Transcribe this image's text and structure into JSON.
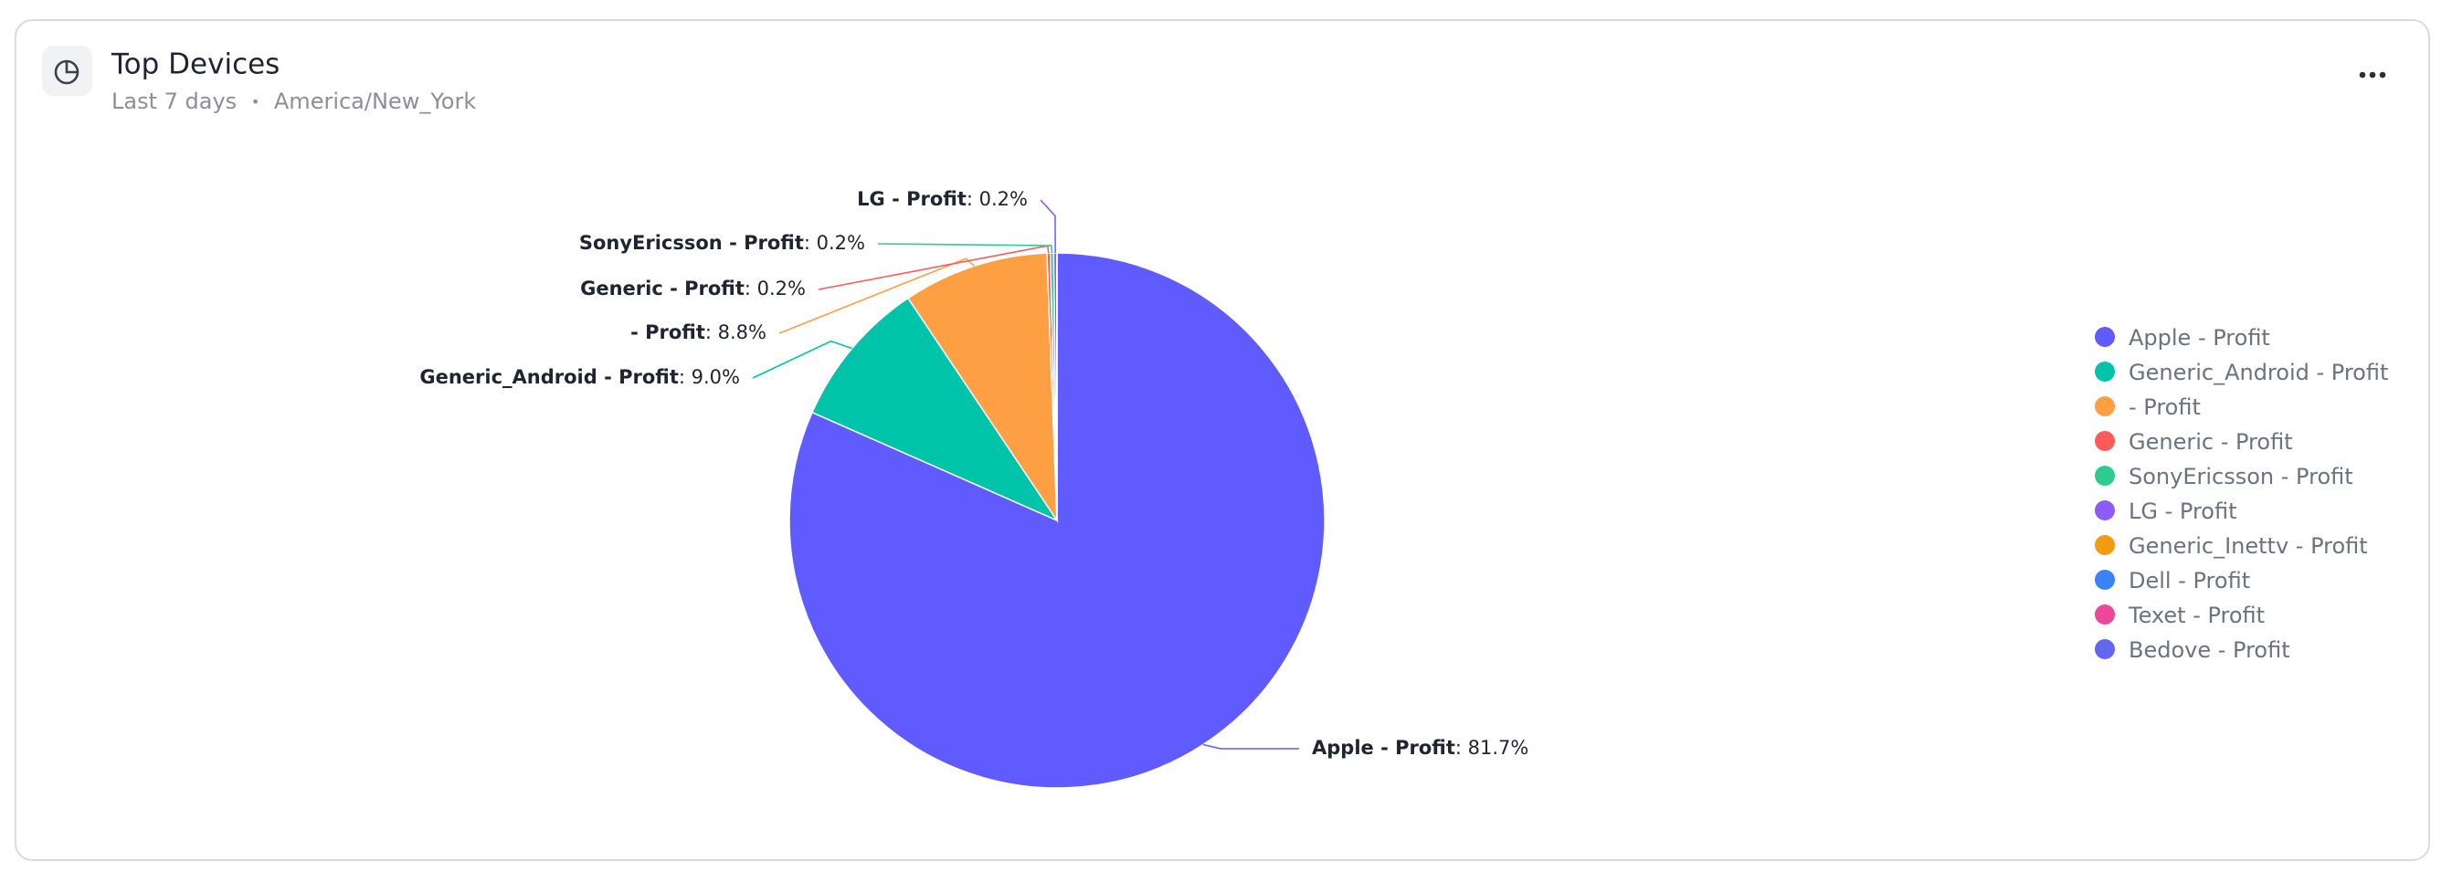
{
  "header": {
    "title": "Top Devices",
    "range": "Last 7 days",
    "separator": "•",
    "timezone": "America/New_York"
  },
  "chart_data": {
    "type": "pie",
    "legend": "right",
    "categories": [
      "Apple - Profit",
      "Generic_Android - Profit",
      "- Profit",
      "Generic - Profit",
      "SonyEricsson - Profit",
      "LG - Profit",
      "Generic_Inettv - Profit",
      "Dell - Profit",
      "Texet - Profit",
      "Bedove - Profit"
    ],
    "values": [
      81.7,
      9.0,
      8.8,
      0.2,
      0.2,
      0.2,
      0,
      0,
      0,
      0
    ],
    "value_labels": [
      ": 81.7%",
      ": 9.0%",
      ": 8.8%",
      ": 0.2%",
      ": 0.2%",
      ": 0.2%",
      null,
      null,
      null,
      null
    ],
    "colors": [
      "#5f5bff",
      "#00c4aa",
      "#ff9f43",
      "#ff5b5b",
      "#2ecc8f",
      "#8b5cf6",
      "#f39c12",
      "#3b82f6",
      "#ec4899",
      "#6366f1"
    ]
  }
}
